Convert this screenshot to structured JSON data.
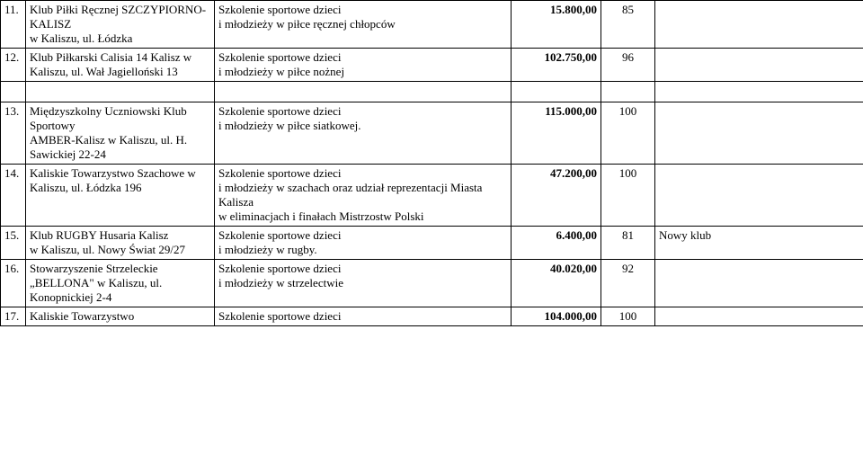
{
  "rows": [
    {
      "num": "11.",
      "org": "Klub Piłki Ręcznej SZCZYPIORNO-KALISZ\nw Kaliszu, ul. Łódzka",
      "desc": "Szkolenie sportowe dzieci\ni młodzieży w piłce ręcznej chłopców",
      "amt": "15.800,00",
      "score": "85",
      "note": ""
    },
    {
      "num": "12.",
      "org": "Klub Piłkarski Calisia 14 Kalisz w Kaliszu, ul. Wał Jagielloński 13",
      "desc": "Szkolenie sportowe dzieci\ni młodzieży w piłce nożnej",
      "amt": "102.750,00",
      "score": "96",
      "note": ""
    },
    {
      "num": "13.",
      "org": "Międzyszkolny Uczniowski Klub Sportowy\nAMBER-Kalisz w Kaliszu, ul. H. Sawickiej 22-24",
      "desc": "Szkolenie sportowe dzieci\ni młodzieży w piłce siatkowej.",
      "amt": "115.000,00",
      "score": "100",
      "note": ""
    },
    {
      "num": "14.",
      "org": "Kaliskie Towarzystwo Szachowe w Kaliszu, ul. Łódzka 196",
      "desc": "Szkolenie sportowe dzieci\ni młodzieży w szachach oraz udział reprezentacji Miasta Kalisza\nw eliminacjach i finałach Mistrzostw Polski",
      "amt": "47.200,00",
      "score": "100",
      "note": ""
    },
    {
      "num": "15.",
      "org": "Klub RUGBY Husaria Kalisz\nw Kaliszu, ul. Nowy Świat 29/27",
      "desc": "Szkolenie sportowe dzieci\ni młodzieży w rugby.",
      "amt": "6.400,00",
      "score": "81",
      "note": "Nowy klub"
    },
    {
      "num": "16.",
      "org": "Stowarzyszenie Strzeleckie „BELLONA\" w Kaliszu, ul. Konopnickiej 2-4",
      "desc": "Szkolenie sportowe dzieci\ni młodzieży w strzelectwie",
      "amt": "40.020,00",
      "score": "92",
      "note": ""
    },
    {
      "num": "17.",
      "org": "Kaliskie Towarzystwo",
      "desc": "Szkolenie sportowe dzieci",
      "amt": "104.000,00",
      "score": "100",
      "note": ""
    }
  ]
}
